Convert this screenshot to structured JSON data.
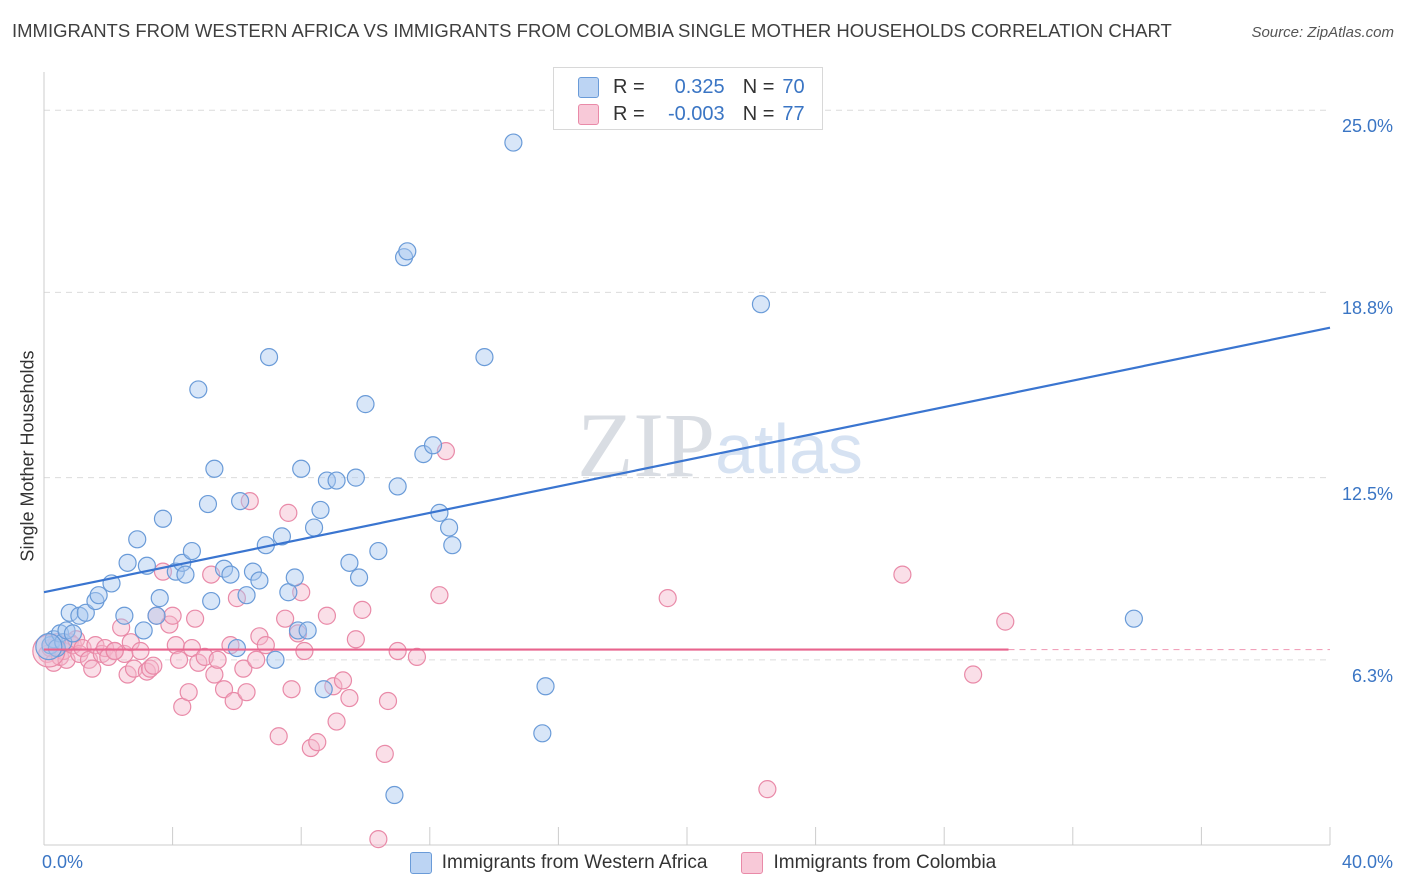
{
  "title": "IMMIGRANTS FROM WESTERN AFRICA VS IMMIGRANTS FROM COLOMBIA SINGLE MOTHER HOUSEHOLDS CORRELATION CHART",
  "source": "Source: ZipAtlas.com",
  "watermark": "ZIPatlas",
  "colors": {
    "blue_fill": "#a9c8ef",
    "blue_stroke": "#6a9bd8",
    "blue_line": "#3a75d0",
    "pink_fill": "#f4b8cb",
    "pink_stroke": "#e98aa8",
    "pink_line": "#e8648e",
    "tick_text": "#3a75c4",
    "grid": "#dcdcdc"
  },
  "stats": [
    {
      "r_label": "R =",
      "r_value": "0.325",
      "n_label": "N =",
      "n_value": "70",
      "color": "blue"
    },
    {
      "r_label": "R =",
      "r_value": "-0.003",
      "n_label": "N =",
      "n_value": "77",
      "color": "pink"
    }
  ],
  "chart_data": {
    "type": "scatter",
    "ylabel": "Single Mother Households",
    "xlabel": "",
    "xlim": [
      0,
      40
    ],
    "ylim": [
      0,
      26.3
    ],
    "x_tick_labels": [
      "0.0%",
      "40.0%"
    ],
    "y_ticks": [
      6.3,
      12.5,
      18.8,
      25.0
    ],
    "y_tick_labels": [
      "6.3%",
      "12.5%",
      "18.8%",
      "25.0%"
    ],
    "grid": "horizontal dashed",
    "legend_position": "bottom",
    "series": [
      {
        "name": "Immigrants from Western Africa",
        "color": "blue",
        "trend": {
          "x": [
            0,
            40
          ],
          "y": [
            8.6,
            17.6
          ]
        },
        "points": [
          [
            0.2,
            6.8
          ],
          [
            0.3,
            7.0
          ],
          [
            0.4,
            6.7
          ],
          [
            0.5,
            7.2
          ],
          [
            0.6,
            6.9
          ],
          [
            0.7,
            7.3
          ],
          [
            0.8,
            7.9
          ],
          [
            0.9,
            7.2
          ],
          [
            1.1,
            7.8
          ],
          [
            1.3,
            7.9
          ],
          [
            1.6,
            8.3
          ],
          [
            1.7,
            8.5
          ],
          [
            2.1,
            8.9
          ],
          [
            2.5,
            7.8
          ],
          [
            2.6,
            9.6
          ],
          [
            2.9,
            10.4
          ],
          [
            3.1,
            7.3
          ],
          [
            3.2,
            9.5
          ],
          [
            3.5,
            7.8
          ],
          [
            3.6,
            8.4
          ],
          [
            3.7,
            11.1
          ],
          [
            4.1,
            9.3
          ],
          [
            4.3,
            9.6
          ],
          [
            4.4,
            9.2
          ],
          [
            4.6,
            10.0
          ],
          [
            4.8,
            15.5
          ],
          [
            5.1,
            11.6
          ],
          [
            5.2,
            8.3
          ],
          [
            5.3,
            12.8
          ],
          [
            5.6,
            9.4
          ],
          [
            5.8,
            9.2
          ],
          [
            6.0,
            6.7
          ],
          [
            6.1,
            11.7
          ],
          [
            6.3,
            8.5
          ],
          [
            6.5,
            9.3
          ],
          [
            6.7,
            9.0
          ],
          [
            6.9,
            10.2
          ],
          [
            7.0,
            16.6
          ],
          [
            7.2,
            6.3
          ],
          [
            7.4,
            10.5
          ],
          [
            7.6,
            8.6
          ],
          [
            7.8,
            9.1
          ],
          [
            7.9,
            7.3
          ],
          [
            8.0,
            12.8
          ],
          [
            8.2,
            7.3
          ],
          [
            8.4,
            10.8
          ],
          [
            8.6,
            11.4
          ],
          [
            8.7,
            5.3
          ],
          [
            8.8,
            12.4
          ],
          [
            9.1,
            12.4
          ],
          [
            9.5,
            9.6
          ],
          [
            9.7,
            12.5
          ],
          [
            9.8,
            9.1
          ],
          [
            10.0,
            15.0
          ],
          [
            10.4,
            10.0
          ],
          [
            10.9,
            1.7
          ],
          [
            11.0,
            12.2
          ],
          [
            11.2,
            20.0
          ],
          [
            11.3,
            20.2
          ],
          [
            11.8,
            13.3
          ],
          [
            12.1,
            13.6
          ],
          [
            12.3,
            11.3
          ],
          [
            12.6,
            10.8
          ],
          [
            12.7,
            10.2
          ],
          [
            13.7,
            16.6
          ],
          [
            14.6,
            23.9
          ],
          [
            15.5,
            3.8
          ],
          [
            15.6,
            5.4
          ],
          [
            22.3,
            18.4
          ],
          [
            33.9,
            7.7
          ]
        ]
      },
      {
        "name": "Immigrants from Colombia",
        "color": "pink",
        "trend": {
          "x": [
            0,
            30
          ],
          "y": [
            6.65,
            6.65
          ]
        },
        "points": [
          [
            0.1,
            6.5
          ],
          [
            0.2,
            6.7
          ],
          [
            0.3,
            6.2
          ],
          [
            0.4,
            6.9
          ],
          [
            0.5,
            6.4
          ],
          [
            0.6,
            6.6
          ],
          [
            0.7,
            6.3
          ],
          [
            0.8,
            6.9
          ],
          [
            0.9,
            6.8
          ],
          [
            1.0,
            7.0
          ],
          [
            1.1,
            6.5
          ],
          [
            1.2,
            6.7
          ],
          [
            1.4,
            6.3
          ],
          [
            1.5,
            6.0
          ],
          [
            1.6,
            6.8
          ],
          [
            1.8,
            6.5
          ],
          [
            1.9,
            6.7
          ],
          [
            2.0,
            6.4
          ],
          [
            2.2,
            6.6
          ],
          [
            2.4,
            7.4
          ],
          [
            2.5,
            6.5
          ],
          [
            2.6,
            5.8
          ],
          [
            2.7,
            6.9
          ],
          [
            2.8,
            6.0
          ],
          [
            3.0,
            6.6
          ],
          [
            3.2,
            5.9
          ],
          [
            3.3,
            6.0
          ],
          [
            3.4,
            6.1
          ],
          [
            3.5,
            7.8
          ],
          [
            3.7,
            9.3
          ],
          [
            3.9,
            7.5
          ],
          [
            4.0,
            7.8
          ],
          [
            4.1,
            6.8
          ],
          [
            4.2,
            6.3
          ],
          [
            4.3,
            4.7
          ],
          [
            4.5,
            5.2
          ],
          [
            4.6,
            6.7
          ],
          [
            4.7,
            7.7
          ],
          [
            4.8,
            6.2
          ],
          [
            5.0,
            6.4
          ],
          [
            5.2,
            9.2
          ],
          [
            5.3,
            5.8
          ],
          [
            5.4,
            6.3
          ],
          [
            5.6,
            5.3
          ],
          [
            5.8,
            6.8
          ],
          [
            5.9,
            4.9
          ],
          [
            6.0,
            8.4
          ],
          [
            6.2,
            6.0
          ],
          [
            6.3,
            5.2
          ],
          [
            6.4,
            11.7
          ],
          [
            6.6,
            6.3
          ],
          [
            6.7,
            7.1
          ],
          [
            6.9,
            6.8
          ],
          [
            7.3,
            3.7
          ],
          [
            7.5,
            7.7
          ],
          [
            7.6,
            11.3
          ],
          [
            7.7,
            5.3
          ],
          [
            7.9,
            7.2
          ],
          [
            8.0,
            8.6
          ],
          [
            8.1,
            6.6
          ],
          [
            8.3,
            3.3
          ],
          [
            8.5,
            3.5
          ],
          [
            8.8,
            7.8
          ],
          [
            9.0,
            5.4
          ],
          [
            9.1,
            4.2
          ],
          [
            9.3,
            5.6
          ],
          [
            9.5,
            5.0
          ],
          [
            9.7,
            7.0
          ],
          [
            9.9,
            8.0
          ],
          [
            10.4,
            0.2
          ],
          [
            10.6,
            3.1
          ],
          [
            10.7,
            4.9
          ],
          [
            11.0,
            6.6
          ],
          [
            11.6,
            6.4
          ],
          [
            12.5,
            13.4
          ],
          [
            19.4,
            8.4
          ],
          [
            22.5,
            1.9
          ]
        ],
        "extra_points": [
          [
            12.3,
            8.5
          ],
          [
            26.7,
            9.2
          ],
          [
            28.9,
            5.8
          ],
          [
            29.9,
            7.6
          ],
          [
            2.2,
            6.6
          ]
        ]
      }
    ]
  },
  "legend": [
    {
      "label": "Immigrants from Western Africa",
      "color": "blue"
    },
    {
      "label": "Immigrants from Colombia",
      "color": "pink"
    }
  ]
}
